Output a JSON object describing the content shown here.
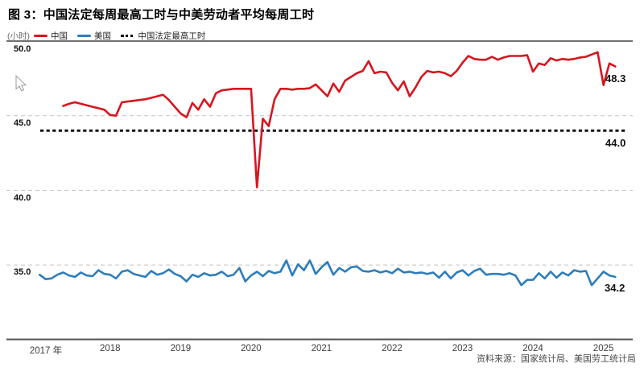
{
  "chart_data": {
    "type": "line",
    "title": "图 3：中国法定每周最高工时与中美劳动者平均每周工时",
    "unit_label": "(小时)",
    "ylim": [
      30,
      50
    ],
    "yticks": [
      "50.0",
      "45.0",
      "40.0",
      "35.0"
    ],
    "xticks": [
      "2017 年",
      "2018",
      "2019",
      "2020",
      "2021",
      "2022",
      "2023",
      "2024",
      "2025"
    ],
    "grid": "horizontal-dashed",
    "legend_position": "top-left",
    "source": "资料来源：国家统计局、美国劳工统计局",
    "series": [
      {
        "name": "中国",
        "type": "line",
        "color": "#d6161f",
        "frequency": "monthly",
        "start": "2017-05",
        "end_label": "48.3",
        "values": [
          45.65,
          45.8,
          45.9,
          45.8,
          45.7,
          45.6,
          45.5,
          45.4,
          45.05,
          45.0,
          45.9,
          45.95,
          46.0,
          46.05,
          46.1,
          46.2,
          46.3,
          46.4,
          46.05,
          45.6,
          45.15,
          44.9,
          45.85,
          45.4,
          46.1,
          45.6,
          46.5,
          46.7,
          46.75,
          46.8,
          46.8,
          46.8,
          46.8,
          40.2,
          44.8,
          44.3,
          46.1,
          46.8,
          46.8,
          46.75,
          46.8,
          46.8,
          46.85,
          47.1,
          46.7,
          46.3,
          47.15,
          46.6,
          47.35,
          47.6,
          47.85,
          48.0,
          48.65,
          47.85,
          47.95,
          47.9,
          47.2,
          46.7,
          47.3,
          46.3,
          46.9,
          47.6,
          48.0,
          47.9,
          47.95,
          47.85,
          47.65,
          48.0,
          48.55,
          49.0,
          48.8,
          48.75,
          48.75,
          48.95,
          48.75,
          48.9,
          49.0,
          49.0,
          49.0,
          49.05,
          47.95,
          48.5,
          48.4,
          48.85,
          48.7,
          48.8,
          48.75,
          48.8,
          48.9,
          48.95,
          49.1,
          49.25,
          47.05,
          48.5,
          48.3
        ]
      },
      {
        "name": "美国",
        "type": "line",
        "color": "#2d7dbb",
        "frequency": "monthly",
        "start": "2017-01",
        "end_label": "34.2",
        "values": [
          34.35,
          34.05,
          34.1,
          34.35,
          34.5,
          34.3,
          34.2,
          34.5,
          34.3,
          34.25,
          34.65,
          34.4,
          34.35,
          34.1,
          34.55,
          34.65,
          34.4,
          34.3,
          34.2,
          34.6,
          34.35,
          34.45,
          34.7,
          34.4,
          34.25,
          33.9,
          34.35,
          34.2,
          34.45,
          34.3,
          34.35,
          34.55,
          34.25,
          34.35,
          34.8,
          33.9,
          34.3,
          34.55,
          34.25,
          34.6,
          34.45,
          34.55,
          35.3,
          34.3,
          35.05,
          34.65,
          35.3,
          34.4,
          34.85,
          35.2,
          34.35,
          34.8,
          34.55,
          34.85,
          34.9,
          34.6,
          34.55,
          34.65,
          34.5,
          34.6,
          34.45,
          34.75,
          34.5,
          34.55,
          34.45,
          34.5,
          34.4,
          34.5,
          34.15,
          34.55,
          34.1,
          34.5,
          34.65,
          34.3,
          34.6,
          34.75,
          34.35,
          34.4,
          34.4,
          34.35,
          34.45,
          34.3,
          33.65,
          34.0,
          34.0,
          34.45,
          34.1,
          34.55,
          34.15,
          34.5,
          34.3,
          34.65,
          34.55,
          34.6,
          33.65,
          34.1,
          34.55,
          34.3,
          34.2
        ]
      },
      {
        "name": "中国法定最高工时",
        "type": "reference-line",
        "color": "#141414",
        "value": 44.0,
        "end_label": "44.0"
      }
    ]
  },
  "colors": {
    "grid_dashed": "#c4c4c4",
    "top_rule": "#1c1c1c",
    "axis": "#555555",
    "value_label": "#111111"
  }
}
